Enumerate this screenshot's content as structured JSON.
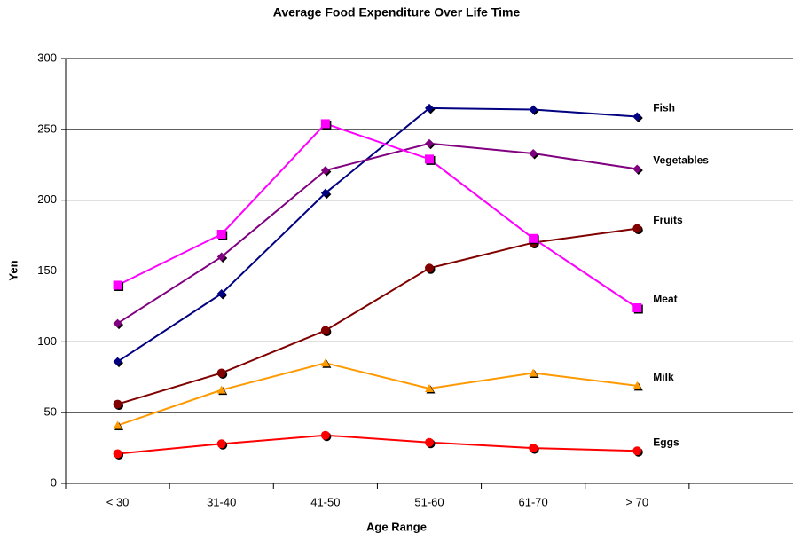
{
  "chart_data": {
    "type": "line",
    "title": "Average Food Expenditure Over Life Time",
    "x_label": "Age Range",
    "y_label": "Yen",
    "categories": [
      "< 30",
      "31-40",
      "41-50",
      "51-60",
      "61-70",
      "> 70",
      null
    ],
    "ylim": [
      0,
      300
    ],
    "yticks": [
      0,
      50,
      100,
      150,
      200,
      250,
      300
    ],
    "grid": true,
    "legend": "line-end",
    "series": [
      {
        "name": "Fish",
        "color": "#000080",
        "marker": "diamond",
        "values": [
          86,
          134,
          205,
          265,
          264,
          259,
          null
        ]
      },
      {
        "name": "Vegetables",
        "color": "#800080",
        "marker": "diamond",
        "values": [
          113,
          160,
          221,
          240,
          233,
          222,
          null
        ]
      },
      {
        "name": "Fruits",
        "color": "#800000",
        "marker": "circle",
        "values": [
          56,
          78,
          108,
          152,
          170,
          180,
          null
        ]
      },
      {
        "name": "Meat",
        "color": "#ff00ff",
        "marker": "square",
        "values": [
          140,
          176,
          254,
          229,
          173,
          124,
          null
        ]
      },
      {
        "name": "Milk",
        "color": "#ff9900",
        "marker": "triangle",
        "values": [
          41,
          66,
          85,
          67,
          78,
          69,
          null
        ]
      },
      {
        "name": "Eggs",
        "color": "#ff0000",
        "marker": "circle",
        "values": [
          21,
          28,
          34,
          29,
          25,
          23,
          null
        ]
      }
    ]
  }
}
